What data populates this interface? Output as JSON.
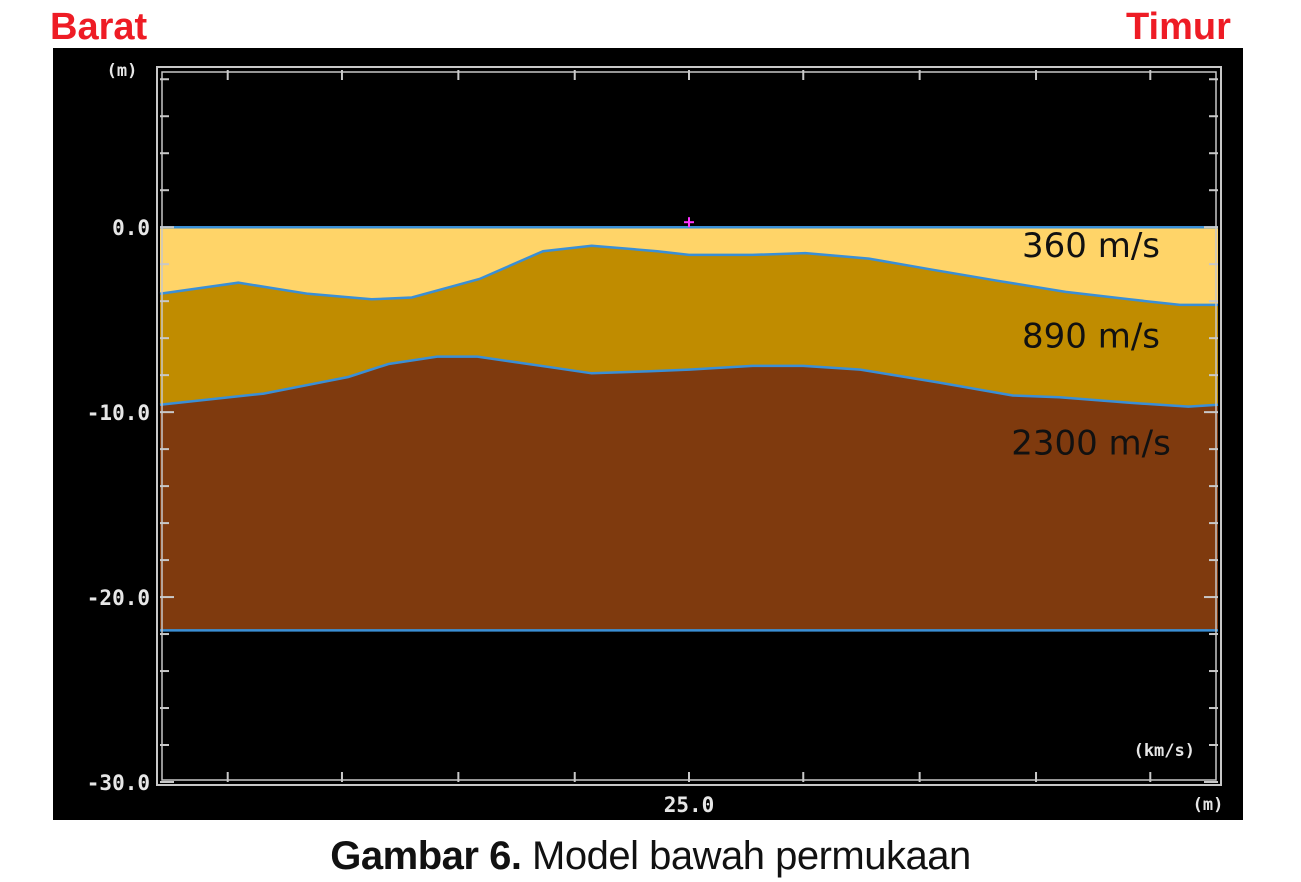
{
  "header": {
    "west_label": "Barat",
    "east_label": "Timur"
  },
  "caption": {
    "figure_number": "Gambar 6.",
    "text": " Model bawah permukaan"
  },
  "colors": {
    "background": "#000000",
    "frame": "#c8c8c8",
    "boundary": "#3a8fd6",
    "layer_1": "#ffd468",
    "layer_2": "#c08c00",
    "layer_3": "#7f3a0e",
    "west_east_label": "#ee1c25",
    "marker": "#ff33ff"
  },
  "chart_data": {
    "type": "area",
    "title": "",
    "x_unit_label": "(m)",
    "y_unit_label": "(m)",
    "velocity_unit_label": "(km/s)",
    "xlim": [
      0,
      50
    ],
    "ylim": [
      -30,
      8.5
    ],
    "x_ticks": [
      {
        "value": 25,
        "label": "25.0"
      }
    ],
    "x_minor_ticks": [
      3.2,
      8.6,
      14.1,
      19.6,
      30.4,
      35.9,
      41.4,
      46.8
    ],
    "y_ticks": [
      {
        "value": 0,
        "label": "0.0"
      },
      {
        "value": -10,
        "label": "-10.0"
      },
      {
        "value": -20,
        "label": "-20.0"
      },
      {
        "value": -30,
        "label": "-30.0"
      }
    ],
    "y_minor_step": 2,
    "surface_marker_x": 25,
    "boundaries": [
      {
        "name": "surface",
        "x": [
          0,
          50
        ],
        "y": [
          0,
          0
        ]
      },
      {
        "name": "boundary-1-2",
        "x": [
          0,
          3.7,
          7.0,
          10.0,
          11.9,
          15.1,
          18.1,
          20.4,
          23.5,
          25.0,
          28.0,
          30.5,
          33.5,
          36.5,
          39.6,
          42.8,
          45.8,
          48.2,
          50.0
        ],
        "y": [
          -3.6,
          -3.0,
          -3.6,
          -3.9,
          -3.8,
          -2.8,
          -1.3,
          -1.0,
          -1.3,
          -1.5,
          -1.5,
          -1.4,
          -1.7,
          -2.3,
          -2.9,
          -3.5,
          -3.9,
          -4.2,
          -4.2
        ]
      },
      {
        "name": "boundary-2-3",
        "x": [
          0,
          4.9,
          8.9,
          10.8,
          13.1,
          15.0,
          18.6,
          20.4,
          23.0,
          25.0,
          28.0,
          30.4,
          33.1,
          36.8,
          40.3,
          42.5,
          45.9,
          48.6,
          50.0
        ],
        "y": [
          -9.6,
          -9.0,
          -8.1,
          -7.4,
          -7.0,
          -7.0,
          -7.6,
          -7.9,
          -7.8,
          -7.7,
          -7.5,
          -7.5,
          -7.7,
          -8.4,
          -9.1,
          -9.2,
          -9.5,
          -9.7,
          -9.6
        ]
      },
      {
        "name": "bottom",
        "x": [
          0,
          50
        ],
        "y": [
          -21.8,
          -21.8
        ]
      }
    ],
    "layers": [
      {
        "name": "layer-1",
        "velocity_label": "360 m/s",
        "label_x": 44.0,
        "label_y": -1.6
      },
      {
        "name": "layer-2",
        "velocity_label": "890 m/s",
        "label_x": 44.0,
        "label_y": -6.5
      },
      {
        "name": "layer-3",
        "velocity_label": "2300 m/s",
        "label_x": 44.0,
        "label_y": -12.3
      }
    ]
  }
}
